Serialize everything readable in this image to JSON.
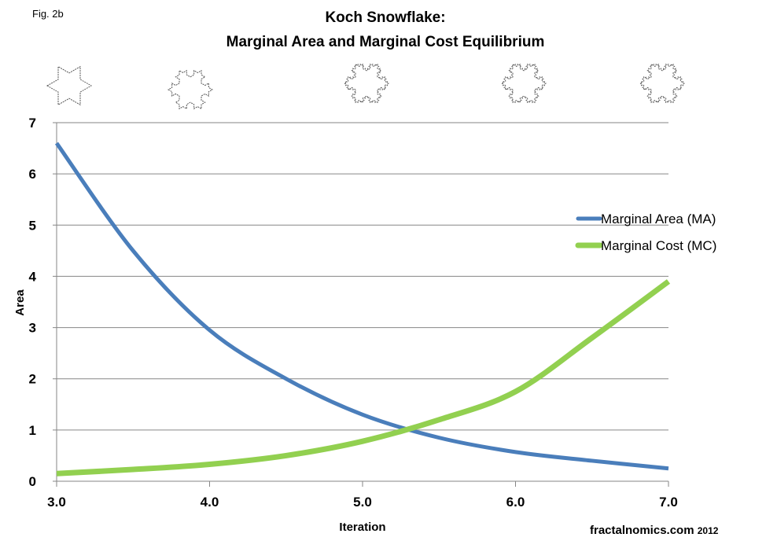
{
  "figure_label": "Fig. 2b",
  "credit": {
    "site": "fractalnomics.com",
    "year": "2012"
  },
  "chart_data": {
    "type": "line",
    "title": [
      "Koch Snowflake:",
      "Marginal Area and Marginal Cost Equilibrium"
    ],
    "xlabel": "Iteration",
    "ylabel": "Area",
    "xlim": [
      3.0,
      7.0
    ],
    "ylim": [
      0,
      7
    ],
    "xticks": [
      "3.0",
      "4.0",
      "5.0",
      "6.0",
      "7.0"
    ],
    "yticks": [
      "0",
      "1",
      "2",
      "3",
      "4",
      "5",
      "6",
      "7"
    ],
    "grid": true,
    "legend_position": "right",
    "x": [
      3.0,
      3.5,
      4.0,
      4.5,
      5.0,
      5.5,
      6.0,
      6.5,
      7.0
    ],
    "series": [
      {
        "name": "Marginal Area (MA)",
        "color": "#4a7ebb",
        "values": [
          6.6,
          4.5,
          2.95,
          2.0,
          1.3,
          0.85,
          0.57,
          0.4,
          0.25
        ]
      },
      {
        "name": "Marginal Cost (MC)",
        "color": "#92d050",
        "values": [
          0.15,
          0.23,
          0.33,
          0.5,
          0.78,
          1.2,
          1.75,
          2.8,
          3.9
        ]
      }
    ],
    "decorations": [
      "koch-snowflake",
      "koch-snowflake",
      "koch-snowflake",
      "koch-snowflake",
      "koch-snowflake"
    ]
  }
}
